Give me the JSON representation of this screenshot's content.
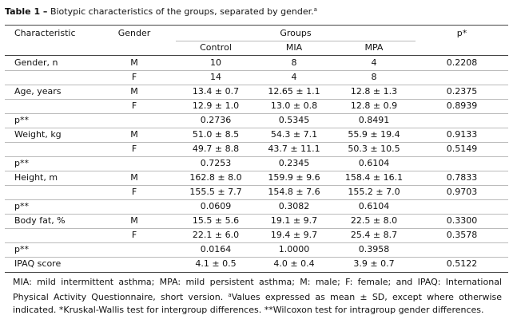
{
  "title": {
    "label": "Table 1 –",
    "text": "Biotypic characteristics of the groups, separated by gender.",
    "sup": "a"
  },
  "table": {
    "header": {
      "characteristic": "Characteristic",
      "gender": "Gender",
      "groups": "Groups",
      "p": "p*"
    },
    "groups": [
      "Control",
      "MIA",
      "MPA"
    ],
    "rows": [
      [
        "Gender, n",
        "M",
        "10",
        "8",
        "4",
        "0.2208"
      ],
      [
        null,
        "F",
        "14",
        "4",
        "8",
        null
      ],
      [
        "Age, years",
        "M",
        "13.4 ± 0.7",
        "12.65 ± 1.1",
        "12.8 ± 1.3",
        "0.2375"
      ],
      [
        null,
        "F",
        "12.9 ± 1.0",
        "13.0 ± 0.8",
        "12.8 ± 0.9",
        "0.8939"
      ],
      [
        "p**",
        null,
        "0.2736",
        "0.5345",
        "0.8491",
        null
      ],
      [
        "Weight, kg",
        "M",
        "51.0 ± 8.5",
        "54.3 ± 7.1",
        "55.9 ± 19.4",
        "0.9133"
      ],
      [
        null,
        "F",
        "49.7 ± 8.8",
        "43.7 ± 11.1",
        "50.3 ± 10.5",
        "0.5149"
      ],
      [
        "p**",
        null,
        "0.7253",
        "0.2345",
        "0.6104",
        null
      ],
      [
        "Height, m",
        "M",
        "162.8 ± 8.0",
        "159.9 ± 9.6",
        "158.4 ± 16.1",
        "0.7833"
      ],
      [
        null,
        "F",
        "155.5 ± 7.7",
        "154.8 ± 7.6",
        "155.2 ± 7.0",
        "0.9703"
      ],
      [
        "p**",
        null,
        "0.0609",
        "0.3082",
        "0.6104",
        null
      ],
      [
        "Body fat, %",
        "M",
        "15.5 ± 5.6",
        "19.1 ± 9.7",
        "22.5 ± 8.0",
        "0.3300"
      ],
      [
        null,
        "F",
        "22.1 ± 6.0",
        "19.4 ± 9.7",
        "25.4 ± 8.7",
        "0.3578"
      ],
      [
        "p**",
        null,
        "0.0164",
        "1.0000",
        "0.3958",
        null
      ],
      [
        "IPAQ score",
        null,
        "4.1 ± 0.5",
        "4.0 ± 0.4",
        "3.9 ± 0.7",
        "0.5122"
      ]
    ]
  },
  "footnote": {
    "part1": "MIA: mild intermittent asthma; MPA: mild persistent asthma; M: male; F: female; and IPAQ: International Physical Activity Questionnaire, short version. ",
    "sup": "a",
    "part2": "Values expressed as mean ± SD, except where otherwise indicated. *Kruskal-Wallis test for intergroup differences. **Wilcoxon test for intragroup gender differences."
  }
}
